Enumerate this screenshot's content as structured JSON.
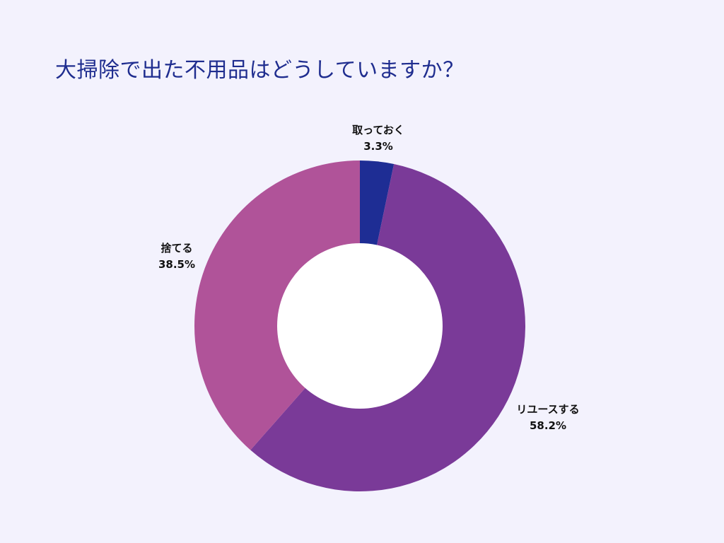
{
  "chart_data": {
    "type": "pie",
    "title": "大掃除で出た不用品はどうしていますか？",
    "categories": [
      "取っておく",
      "リユースする",
      "捨てる"
    ],
    "values": [
      3.3,
      58.2,
      38.5
    ],
    "value_labels": [
      "3.3%",
      "58.2%",
      "38.5%"
    ],
    "colors": [
      "#1e2d94",
      "#7a3a98",
      "#b05399"
    ],
    "legend": "none"
  },
  "colors": {
    "background": "#f3f2fd",
    "title": "#1f2d8f",
    "hole": "#ffffff"
  }
}
